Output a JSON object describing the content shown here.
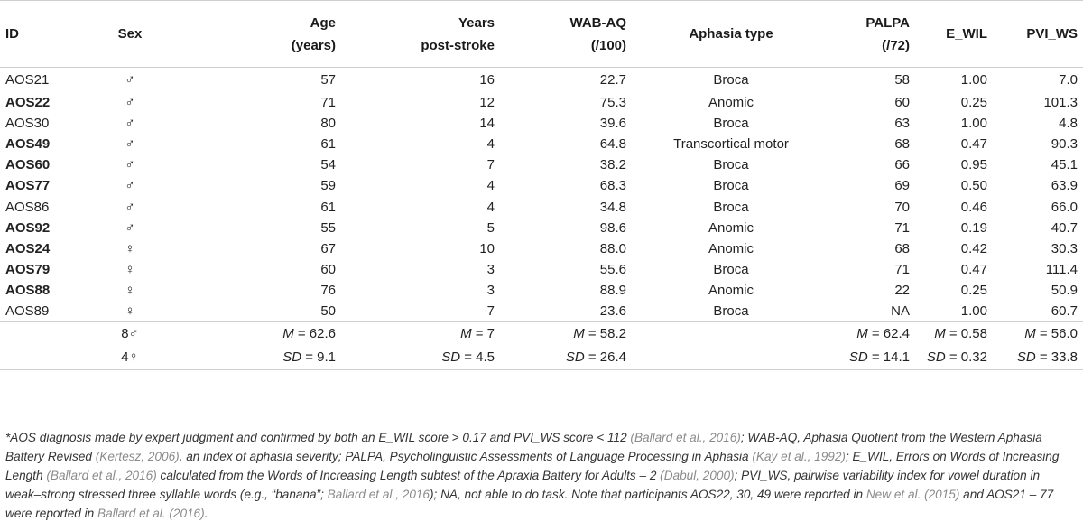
{
  "headers": {
    "id": "ID",
    "sex": "Sex",
    "age_l1": "Age",
    "age_l2": "(years)",
    "years_l1": "Years",
    "years_l2": "post-stroke",
    "wab_l1": "WAB-AQ",
    "wab_l2": "(/100)",
    "aphasia": "Aphasia type",
    "palpa_l1": "PALPA",
    "palpa_l2": "(/72)",
    "ewil": "E_WIL",
    "pvi": "PVI_WS"
  },
  "rows": [
    {
      "id": "AOS21",
      "bold": false,
      "sex": "♂",
      "age": "57",
      "years": "16",
      "wab": "22.7",
      "aphasia": "Broca",
      "palpa": "58",
      "ewil": "1.00",
      "pvi": "7.0"
    },
    {
      "id": "AOS22",
      "bold": true,
      "sex": "♂",
      "age": "71",
      "years": "12",
      "wab": "75.3",
      "aphasia": "Anomic",
      "palpa": "60",
      "ewil": "0.25",
      "pvi": "101.3"
    },
    {
      "id": "AOS30",
      "bold": false,
      "sex": "♂",
      "age": "80",
      "years": "14",
      "wab": "39.6",
      "aphasia": "Broca",
      "palpa": "63",
      "ewil": "1.00",
      "pvi": "4.8"
    },
    {
      "id": "AOS49",
      "bold": true,
      "sex": "♂",
      "age": "61",
      "years": "4",
      "wab": "64.8",
      "aphasia": "Transcortical motor",
      "palpa": "68",
      "ewil": "0.47",
      "pvi": "90.3"
    },
    {
      "id": "AOS60",
      "bold": true,
      "sex": "♂",
      "age": "54",
      "years": "7",
      "wab": "38.2",
      "aphasia": "Broca",
      "palpa": "66",
      "ewil": "0.95",
      "pvi": "45.1"
    },
    {
      "id": "AOS77",
      "bold": true,
      "sex": "♂",
      "age": "59",
      "years": "4",
      "wab": "68.3",
      "aphasia": "Broca",
      "palpa": "69",
      "ewil": "0.50",
      "pvi": "63.9"
    },
    {
      "id": "AOS86",
      "bold": false,
      "sex": "♂",
      "age": "61",
      "years": "4",
      "wab": "34.8",
      "aphasia": "Broca",
      "palpa": "70",
      "ewil": "0.46",
      "pvi": "66.0"
    },
    {
      "id": "AOS92",
      "bold": true,
      "sex": "♂",
      "age": "55",
      "years": "5",
      "wab": "98.6",
      "aphasia": "Anomic",
      "palpa": "71",
      "ewil": "0.19",
      "pvi": "40.7"
    },
    {
      "id": "AOS24",
      "bold": true,
      "sex": "♀",
      "age": "67",
      "years": "10",
      "wab": "88.0",
      "aphasia": "Anomic",
      "palpa": "68",
      "ewil": "0.42",
      "pvi": "30.3"
    },
    {
      "id": "AOS79",
      "bold": true,
      "sex": "♀",
      "age": "60",
      "years": "3",
      "wab": "55.6",
      "aphasia": "Broca",
      "palpa": "71",
      "ewil": "0.47",
      "pvi": "111.4"
    },
    {
      "id": "AOS88",
      "bold": true,
      "sex": "♀",
      "age": "76",
      "years": "3",
      "wab": "88.9",
      "aphasia": "Anomic",
      "palpa": "22",
      "ewil": "0.25",
      "pvi": "50.9"
    },
    {
      "id": "AOS89",
      "bold": false,
      "sex": "♀",
      "age": "50",
      "years": "7",
      "wab": "23.6",
      "aphasia": "Broca",
      "palpa": "NA",
      "ewil": "1.00",
      "pvi": "60.7"
    }
  ],
  "summary": {
    "sex_m": "8♂",
    "sex_f": "4♀",
    "m_label": "M",
    "sd_label": "SD",
    "age_m": " = 62.6",
    "age_sd": " = 9.1",
    "years_m": " = 7",
    "years_sd": " = 4.5",
    "wab_m": " = 58.2",
    "wab_sd": " = 26.4",
    "palpa_m": " = 62.4",
    "palpa_sd": " = 14.1",
    "ewil_m": " = 0.58",
    "ewil_sd": " = 0.32",
    "pvi_m": " = 56.0",
    "pvi_sd": " = 33.8"
  },
  "footnote": [
    {
      "t": "*AOS diagnosis made by expert judgment and confirmed by both an E_WIL score > 0.17 and PVI_WS score < 112 ",
      "ref": false
    },
    {
      "t": "(Ballard et al., 2016)",
      "ref": true
    },
    {
      "t": "; WAB-AQ, Aphasia Quotient from the Western Aphasia Battery Revised ",
      "ref": false
    },
    {
      "t": "(Kertesz, 2006)",
      "ref": true
    },
    {
      "t": ", an index of aphasia severity; PALPA, Psycholinguistic Assessments of Language Processing in Aphasia ",
      "ref": false
    },
    {
      "t": "(Kay et al., 1992)",
      "ref": true
    },
    {
      "t": "; E_WIL, Errors on Words of Increasing Length ",
      "ref": false
    },
    {
      "t": "(Ballard et al., 2016)",
      "ref": true
    },
    {
      "t": " calculated from the Words of Increasing Length subtest of the Apraxia Battery for Adults – 2 ",
      "ref": false
    },
    {
      "t": "(Dabul, 2000)",
      "ref": true
    },
    {
      "t": "; PVI_WS, pairwise variability index for vowel duration in weak–strong stressed three syllable words (e.g., “banana”; ",
      "ref": false
    },
    {
      "t": "Ballard et al., 2016",
      "ref": true
    },
    {
      "t": "); NA, not able to do task. Note that participants AOS22, 30, 49 were reported in ",
      "ref": false
    },
    {
      "t": "New et al. (2015)",
      "ref": true
    },
    {
      "t": " and AOS21 – 77 were reported in ",
      "ref": false
    },
    {
      "t": "Ballard et al. (2016)",
      "ref": true
    },
    {
      "t": ".",
      "ref": false
    }
  ]
}
